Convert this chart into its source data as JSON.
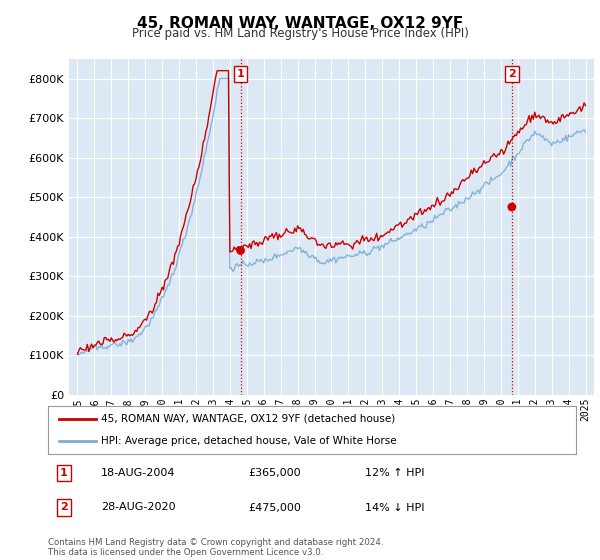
{
  "title": "45, ROMAN WAY, WANTAGE, OX12 9YF",
  "subtitle": "Price paid vs. HM Land Registry's House Price Index (HPI)",
  "legend_label_red": "45, ROMAN WAY, WANTAGE, OX12 9YF (detached house)",
  "legend_label_blue": "HPI: Average price, detached house, Vale of White Horse",
  "annotation1_date": "18-AUG-2004",
  "annotation1_price": "£365,000",
  "annotation1_hpi": "12% ↑ HPI",
  "annotation1_year": 2004.63,
  "annotation1_value": 365000,
  "annotation2_date": "28-AUG-2020",
  "annotation2_price": "£475,000",
  "annotation2_hpi": "14% ↓ HPI",
  "annotation2_year": 2020.65,
  "annotation2_value": 475000,
  "footnote": "Contains HM Land Registry data © Crown copyright and database right 2024.\nThis data is licensed under the Open Government Licence v3.0.",
  "ylim": [
    0,
    850000
  ],
  "yticks": [
    0,
    100000,
    200000,
    300000,
    400000,
    500000,
    600000,
    700000,
    800000
  ],
  "background_color": "#ffffff",
  "plot_bg_color": "#dce9f5",
  "red_color": "#cc0000",
  "blue_color": "#7aadd4",
  "vline_color": "#cc0000",
  "grid_color": "#ffffff",
  "xlim_left": 1994.5,
  "xlim_right": 2025.5
}
